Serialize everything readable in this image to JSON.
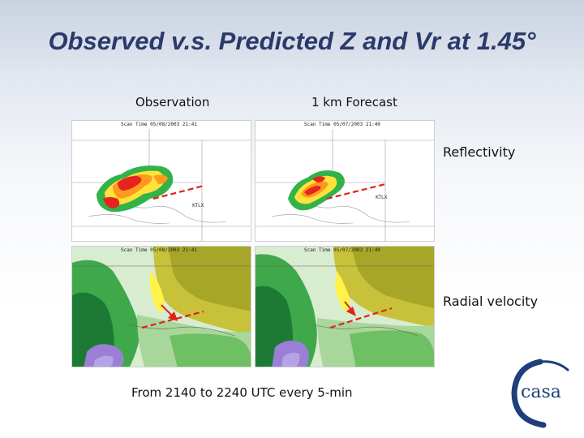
{
  "slide": {
    "title": "Observed v.s. Predicted Z and Vr at 1.45°",
    "column_labels": {
      "observation": "Observation",
      "forecast": "1 km Forecast"
    },
    "row_labels": {
      "reflectivity": "Reflectivity",
      "radial_velocity": "Radial velocity"
    },
    "caption": "From 2140 to 2240 UTC every 5-min",
    "logo_text": "casa"
  },
  "panels": {
    "obs_refl": {
      "scan_time": "Scan Time 05/08/2003 21:41"
    },
    "fc_refl": {
      "scan_time": "Scan Time 05/07/2003 21:40"
    },
    "obs_vel": {
      "scan_time": "Scan Time 05/08/2003 21:41"
    },
    "fc_vel": {
      "scan_time": "Scan Time 05/07/2003 21:40"
    }
  },
  "colors": {
    "title": "#2b3a6b",
    "dashed_line": "#e0221b",
    "arrow": "#e0221b",
    "logo": "#1f3f7a"
  }
}
